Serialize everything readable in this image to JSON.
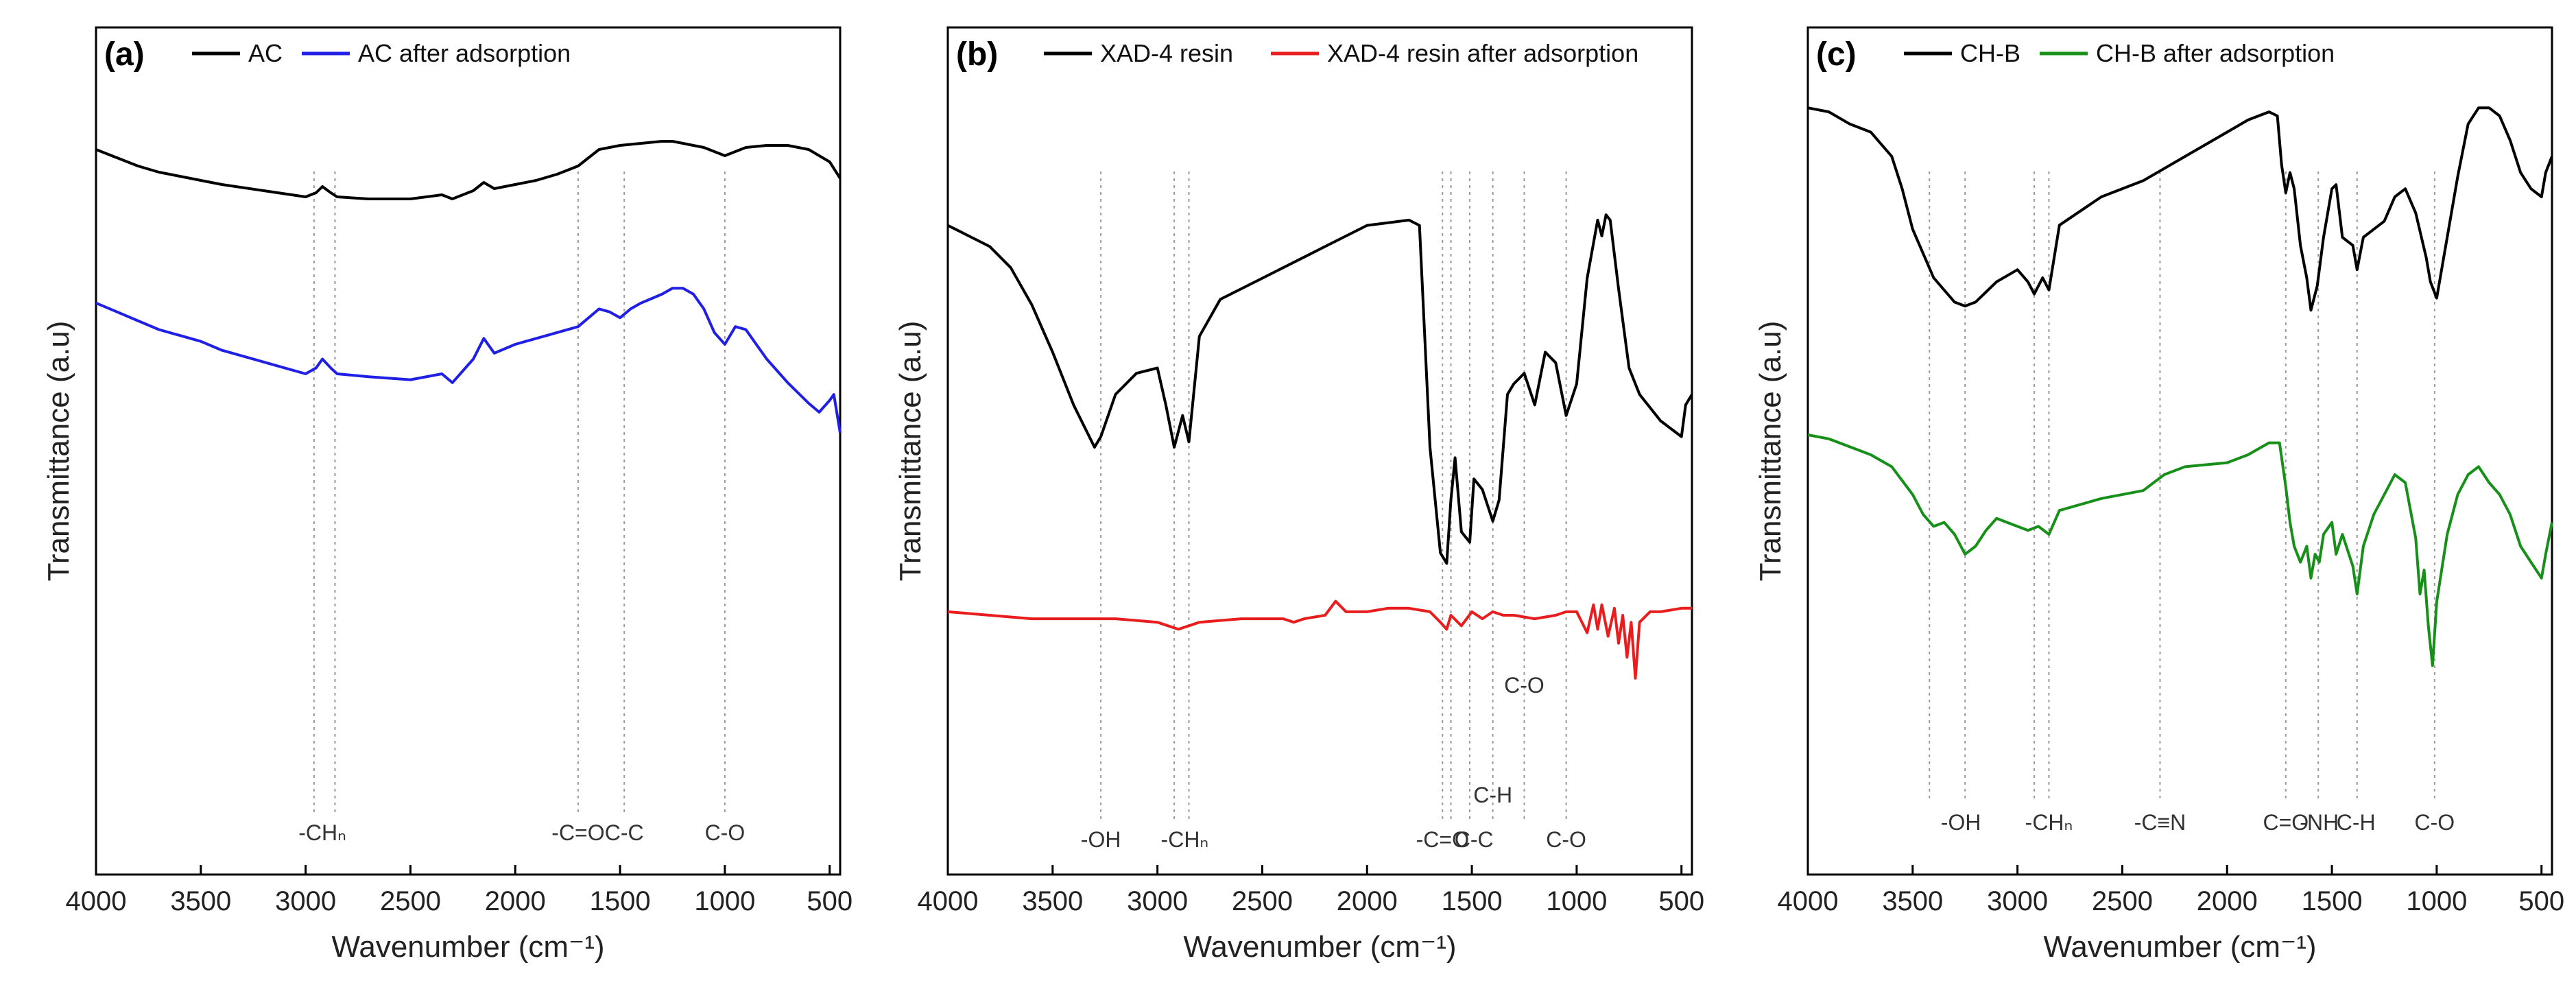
{
  "figure": {
    "panels": [
      "(a)",
      "(b)",
      "(c)"
    ]
  },
  "chart_data": [
    {
      "type": "line",
      "panel_label": "(a)",
      "xlabel": "Wavenumber (cm⁻¹)",
      "ylabel": "Transmittance (a.u)",
      "xlim": [
        4000,
        450
      ],
      "ylim": [
        0,
        100
      ],
      "xticks": [
        "4000",
        "3500",
        "3000",
        "2500",
        "2000",
        "1500",
        "1000",
        "500"
      ],
      "legend_position": "top",
      "series": [
        {
          "name": "AC",
          "color": "#000000",
          "x": [
            4000,
            3900,
            3800,
            3700,
            3600,
            3500,
            3400,
            3200,
            3000,
            2950,
            2920,
            2880,
            2850,
            2700,
            2500,
            2350,
            2300,
            2200,
            2150,
            2100,
            2000,
            1900,
            1800,
            1700,
            1650,
            1600,
            1550,
            1500,
            1400,
            1300,
            1250,
            1200,
            1100,
            1050,
            1000,
            950,
            900,
            800,
            700,
            600,
            500,
            450
          ],
          "y": [
            84,
            80,
            76,
            73,
            71,
            69,
            67,
            64,
            61,
            63,
            66,
            63,
            61,
            60,
            60,
            62,
            60,
            64,
            68,
            65,
            67,
            69,
            72,
            76,
            80,
            84,
            85,
            86,
            87,
            88,
            88,
            87,
            85,
            83,
            81,
            83,
            85,
            86,
            86,
            84,
            78,
            70
          ]
        },
        {
          "name": "AC after adsorption",
          "color": "#1f1fe6",
          "x": [
            4000,
            3900,
            3800,
            3700,
            3600,
            3500,
            3400,
            3200,
            3000,
            2950,
            2920,
            2880,
            2850,
            2700,
            2500,
            2350,
            2300,
            2200,
            2150,
            2100,
            2000,
            1900,
            1800,
            1700,
            1650,
            1600,
            1550,
            1500,
            1450,
            1400,
            1300,
            1250,
            1200,
            1150,
            1100,
            1050,
            1000,
            950,
            900,
            850,
            800,
            700,
            600,
            550,
            500,
            480,
            450
          ],
          "y": [
            74,
            71,
            68,
            65,
            63,
            61,
            58,
            54,
            50,
            52,
            55,
            52,
            50,
            49,
            48,
            50,
            47,
            55,
            62,
            57,
            60,
            62,
            64,
            66,
            69,
            72,
            71,
            69,
            72,
            74,
            77,
            79,
            79,
            77,
            72,
            64,
            60,
            66,
            65,
            60,
            55,
            47,
            40,
            37,
            41,
            43,
            30
          ]
        }
      ],
      "annotations": [
        {
          "text": "-CHₙ",
          "x": 2920
        },
        {
          "text": "-C=O",
          "x": 1700
        },
        {
          "text": "C-C",
          "x": 1480
        },
        {
          "text": "C-O",
          "x": 1000
        }
      ],
      "guide_lines": [
        2960,
        2860,
        1700,
        1480,
        1000
      ]
    },
    {
      "type": "line",
      "panel_label": "(b)",
      "xlabel": "Wavenumber (cm⁻¹)",
      "ylabel": "Transmittance (a.u)",
      "xlim": [
        4000,
        450
      ],
      "ylim": [
        0,
        100
      ],
      "xticks": [
        "4000",
        "3500",
        "3000",
        "2500",
        "2000",
        "1500",
        "1000",
        "500"
      ],
      "legend_position": "top",
      "series": [
        {
          "name": "XAD-4 resin",
          "color": "#000000",
          "x": [
            4000,
            3900,
            3800,
            3700,
            3600,
            3500,
            3400,
            3300,
            3270,
            3200,
            3100,
            3000,
            2960,
            2920,
            2880,
            2850,
            2800,
            2700,
            2500,
            2300,
            2200,
            2000,
            1800,
            1750,
            1700,
            1650,
            1620,
            1600,
            1580,
            1550,
            1510,
            1490,
            1450,
            1400,
            1370,
            1330,
            1300,
            1250,
            1200,
            1150,
            1100,
            1050,
            1000,
            950,
            900,
            880,
            860,
            840,
            800,
            750,
            700,
            600,
            500,
            480,
            450
          ],
          "y": [
            82,
            80,
            78,
            74,
            67,
            58,
            48,
            40,
            42,
            50,
            54,
            55,
            48,
            40,
            46,
            41,
            61,
            68,
            72,
            76,
            78,
            82,
            83,
            82,
            40,
            20,
            18,
            30,
            38,
            24,
            22,
            34,
            32,
            26,
            30,
            50,
            52,
            54,
            48,
            58,
            56,
            46,
            52,
            72,
            83,
            80,
            84,
            83,
            70,
            55,
            50,
            45,
            42,
            48,
            50
          ]
        },
        {
          "name": "XAD-4 resin after adsorption",
          "color": "#e81e1e",
          "x": [
            4000,
            3800,
            3600,
            3400,
            3200,
            3000,
            2950,
            2900,
            2850,
            2800,
            2600,
            2400,
            2350,
            2300,
            2200,
            2150,
            2100,
            2000,
            1900,
            1800,
            1700,
            1650,
            1620,
            1600,
            1550,
            1500,
            1450,
            1400,
            1350,
            1300,
            1200,
            1100,
            1050,
            1000,
            950,
            920,
            900,
            880,
            850,
            820,
            800,
            780,
            760,
            740,
            720,
            700,
            650,
            600,
            500,
            450
          ],
          "y": [
            31,
            30,
            29,
            29,
            29,
            28,
            27,
            26,
            27,
            28,
            29,
            29,
            28,
            29,
            30,
            34,
            31,
            31,
            32,
            32,
            31,
            28,
            26,
            30,
            27,
            31,
            29,
            31,
            30,
            30,
            29,
            30,
            31,
            31,
            25,
            33,
            26,
            33,
            24,
            32,
            22,
            30,
            18,
            28,
            12,
            28,
            31,
            31,
            32,
            32
          ]
        }
      ],
      "annotations": [
        {
          "text": "-OH",
          "x": 3270
        },
        {
          "text": "-CHₙ",
          "x": 2870
        },
        {
          "text": "-C=O",
          "x": 1640
        },
        {
          "text": "C-C",
          "x": 1490
        },
        {
          "text": "C-H",
          "x": 1400
        },
        {
          "text": "C-O",
          "x": 1250
        },
        {
          "text": "C-O",
          "x": 1050
        }
      ],
      "guide_lines": [
        3270,
        2920,
        2850,
        1640,
        1600,
        1510,
        1400,
        1250,
        1050
      ]
    },
    {
      "type": "line",
      "panel_label": "(c)",
      "xlabel": "Wavenumber (cm⁻¹)",
      "ylabel": "Transmittance (a.u)",
      "xlim": [
        4000,
        450
      ],
      "ylim": [
        0,
        100
      ],
      "xticks": [
        "4000",
        "3500",
        "3000",
        "2500",
        "2000",
        "1500",
        "1000",
        "500"
      ],
      "legend_position": "top",
      "series": [
        {
          "name": "CH-B",
          "color": "#000000",
          "x": [
            4000,
            3900,
            3800,
            3700,
            3600,
            3550,
            3500,
            3400,
            3300,
            3250,
            3200,
            3100,
            3000,
            2950,
            2920,
            2880,
            2850,
            2800,
            2600,
            2400,
            2300,
            2200,
            2000,
            1900,
            1800,
            1760,
            1740,
            1720,
            1700,
            1680,
            1650,
            1620,
            1600,
            1570,
            1540,
            1500,
            1480,
            1450,
            1400,
            1380,
            1350,
            1300,
            1250,
            1200,
            1150,
            1100,
            1050,
            1030,
            1000,
            950,
            900,
            850,
            800,
            750,
            700,
            650,
            600,
            550,
            500,
            480,
            450
          ],
          "y": [
            92,
            91,
            88,
            86,
            80,
            72,
            62,
            50,
            44,
            43,
            44,
            49,
            52,
            49,
            46,
            50,
            47,
            63,
            70,
            74,
            77,
            80,
            86,
            89,
            91,
            90,
            78,
            71,
            76,
            72,
            58,
            50,
            42,
            48,
            60,
            72,
            73,
            60,
            58,
            52,
            60,
            62,
            64,
            70,
            72,
            66,
            55,
            49,
            45,
            60,
            75,
            88,
            92,
            92,
            90,
            84,
            76,
            72,
            70,
            76,
            80
          ]
        },
        {
          "name": "CH-B after adsorption",
          "color": "#17901a",
          "x": [
            4000,
            3900,
            3800,
            3700,
            3600,
            3500,
            3450,
            3400,
            3350,
            3300,
            3250,
            3200,
            3150,
            3100,
            3000,
            2950,
            2900,
            2850,
            2800,
            2600,
            2400,
            2300,
            2200,
            2000,
            1900,
            1800,
            1750,
            1720,
            1700,
            1680,
            1650,
            1620,
            1600,
            1580,
            1560,
            1540,
            1500,
            1480,
            1450,
            1400,
            1380,
            1350,
            1300,
            1250,
            1200,
            1150,
            1100,
            1080,
            1060,
            1040,
            1020,
            1000,
            950,
            900,
            850,
            800,
            750,
            700,
            650,
            600,
            550,
            500,
            480,
            450
          ],
          "y": [
            70,
            69,
            67,
            65,
            62,
            55,
            50,
            47,
            48,
            45,
            40,
            42,
            46,
            49,
            47,
            46,
            47,
            45,
            51,
            54,
            56,
            60,
            62,
            63,
            65,
            68,
            68,
            57,
            48,
            42,
            38,
            42,
            34,
            40,
            38,
            45,
            48,
            40,
            45,
            37,
            30,
            42,
            50,
            55,
            60,
            58,
            44,
            30,
            36,
            22,
            12,
            28,
            45,
            55,
            60,
            62,
            58,
            55,
            50,
            42,
            38,
            34,
            40,
            48
          ]
        }
      ],
      "annotations": [
        {
          "text": "-OH",
          "x": 3270
        },
        {
          "text": "-CHₙ",
          "x": 2850
        },
        {
          "text": "-C≡N",
          "x": 2320
        },
        {
          "text": "C=O",
          "x": 1720
        },
        {
          "text": "-NH",
          "x": 1560
        },
        {
          "text": "C-H",
          "x": 1385
        },
        {
          "text": "C-O",
          "x": 1010
        }
      ],
      "guide_lines": [
        3420,
        3250,
        2920,
        2850,
        2320,
        1720,
        1565,
        1380,
        1010
      ]
    }
  ]
}
